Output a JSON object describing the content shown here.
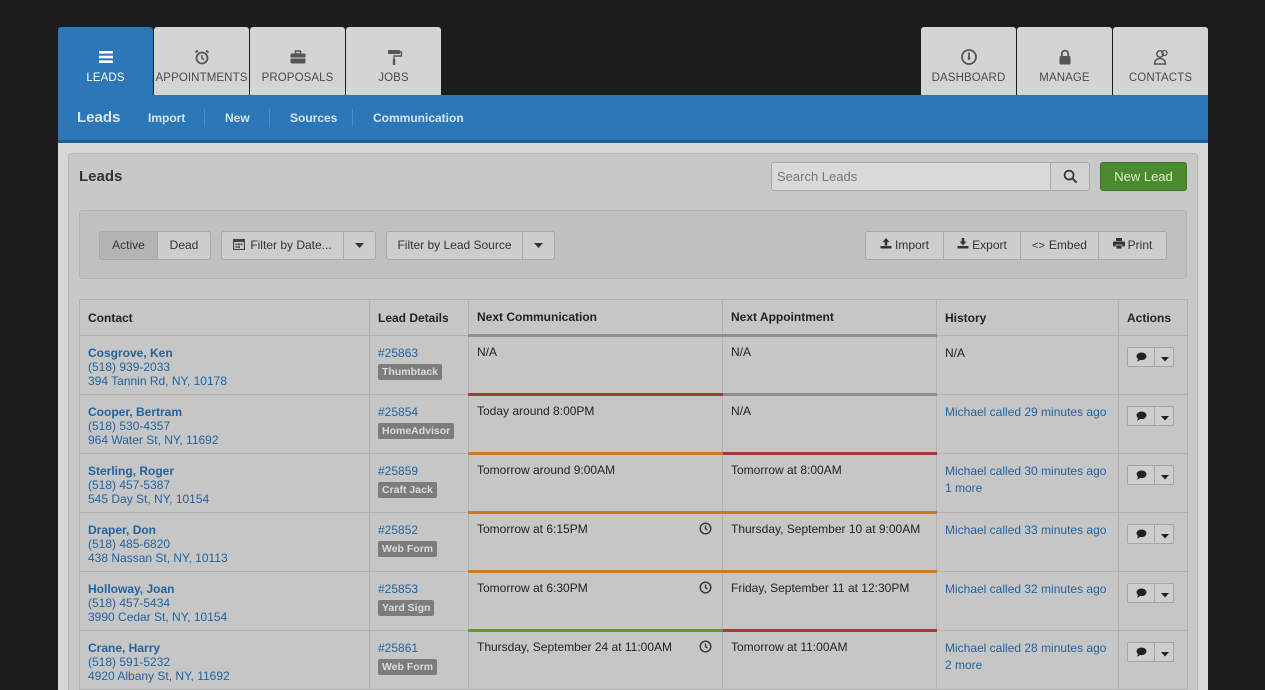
{
  "tabs_left": [
    {
      "label": "LEADS",
      "icon": "list-icon",
      "active": true
    },
    {
      "label": "APPOINTMENTS",
      "icon": "alarm-clock-icon"
    },
    {
      "label": "PROPOSALS",
      "icon": "briefcase-icon"
    },
    {
      "label": "JOBS",
      "icon": "paint-roller-icon"
    }
  ],
  "tabs_right": [
    {
      "label": "DASHBOARD",
      "icon": "gauge-icon"
    },
    {
      "label": "MANAGE",
      "icon": "lock-icon"
    },
    {
      "label": "CONTACTS",
      "icon": "contacts-icon"
    }
  ],
  "subnav": {
    "brand": "Leads",
    "links": [
      "Import",
      "New",
      "Sources",
      "Communication"
    ]
  },
  "panel": {
    "title": "Leads",
    "search_placeholder": "Search Leads",
    "new_lead_label": "New Lead"
  },
  "filters": {
    "active_label": "Active",
    "dead_label": "Dead",
    "date_filter_label": "Filter by Date...",
    "source_filter_label": "Filter by Lead Source",
    "import_label": "Import",
    "export_label": "Export",
    "embed_label": "Embed",
    "print_label": "Print"
  },
  "table": {
    "headers": [
      "Contact",
      "Lead Details",
      "Next Communication",
      "Next Appointment",
      "History",
      "Actions"
    ],
    "rows": [
      {
        "name": "Cosgrove, Ken",
        "phone": "(518) 939-2033",
        "address": "394 Tannin Rd, NY, 10178",
        "lead_id": "#25863",
        "source": "Thumbtack",
        "comm": "N/A",
        "comm_color": "gray",
        "comm_clock": false,
        "appt": "N/A",
        "appt_color": "gray",
        "history": "N/A",
        "history_is_link": false,
        "history_more": ""
      },
      {
        "name": "Cooper, Bertram",
        "phone": "(518) 530-4357",
        "address": "964 Water St, NY, 11692",
        "lead_id": "#25854",
        "source": "HomeAdvisor",
        "comm": "Today around 8:00PM",
        "comm_color": "red",
        "comm_clock": false,
        "appt": "N/A",
        "appt_color": "gray",
        "history": "Michael called 29 minutes ago",
        "history_is_link": true,
        "history_more": ""
      },
      {
        "name": "Sterling, Roger",
        "phone": "(518) 457-5387",
        "address": "545 Day St, NY, 10154",
        "lead_id": "#25859",
        "source": "Craft Jack",
        "comm": "Tomorrow around 9:00AM",
        "comm_color": "orange",
        "comm_clock": false,
        "appt": "Tomorrow at 8:00AM",
        "appt_color": "red",
        "history": "Michael called 30 minutes ago",
        "history_is_link": true,
        "history_more": "1 more"
      },
      {
        "name": "Draper, Don",
        "phone": "(518) 485-6820",
        "address": "438 Nassan St, NY, 10113",
        "lead_id": "#25852",
        "source": "Web Form",
        "comm": "Tomorrow at 6:15PM",
        "comm_color": "orange",
        "comm_clock": true,
        "appt": "Thursday, September 10 at 9:00AM",
        "appt_color": "orange",
        "history": "Michael called 33 minutes ago",
        "history_is_link": true,
        "history_more": ""
      },
      {
        "name": "Holloway, Joan",
        "phone": "(518) 457-5434",
        "address": "3990 Cedar St, NY, 10154",
        "lead_id": "#25853",
        "source": "Yard Sign",
        "comm": "Tomorrow at 6:30PM",
        "comm_color": "orange",
        "comm_clock": true,
        "appt": "Friday, September 11 at 12:30PM",
        "appt_color": "orange",
        "history": "Michael called 32 minutes ago",
        "history_is_link": true,
        "history_more": ""
      },
      {
        "name": "Crane, Harry",
        "phone": "(518) 591-5232",
        "address": "4920 Albany St, NY, 11692",
        "lead_id": "#25861",
        "source": "Web Form",
        "comm": "Thursday, September 24 at 11:00AM",
        "comm_color": "green",
        "comm_clock": true,
        "appt": "Tomorrow at 11:00AM",
        "appt_color": "red",
        "history": "Michael called 28 minutes ago",
        "history_is_link": true,
        "history_more": "2 more"
      }
    ]
  }
}
